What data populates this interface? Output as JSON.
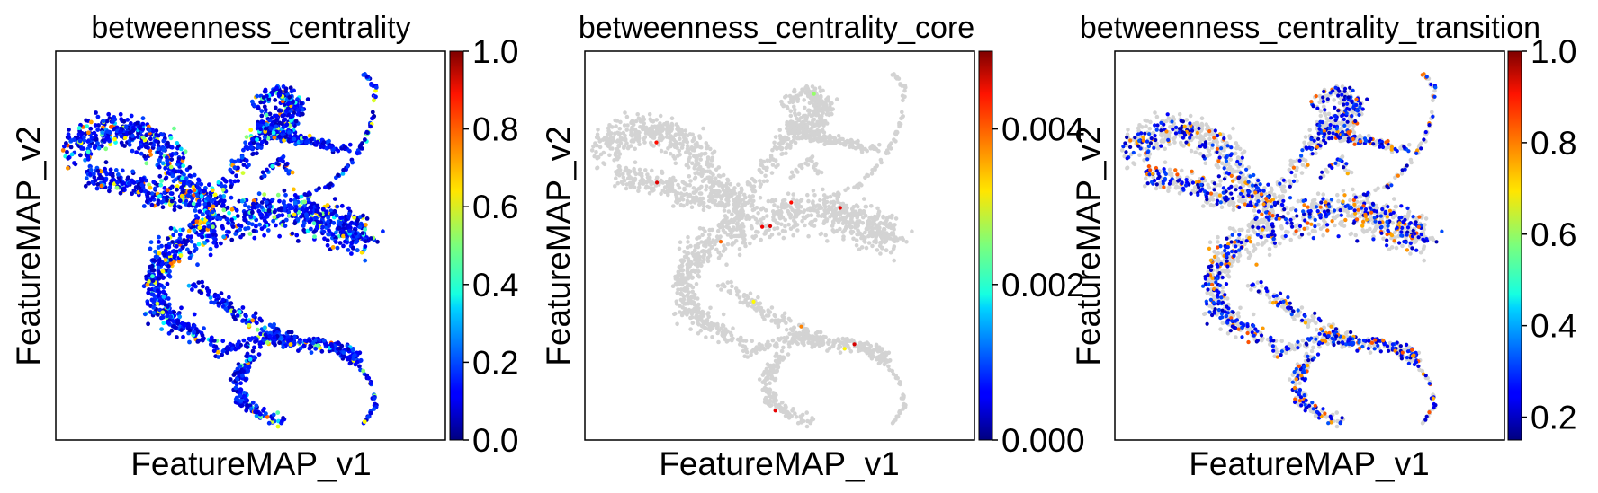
{
  "chart_data": [
    {
      "type": "scatter",
      "title": "betweenness_centrality",
      "xlabel": "FeatureMAP_v1",
      "ylabel": "FeatureMAP_v2",
      "colormap": "jet",
      "background_points": "none",
      "colorbar": {
        "range": [
          0.0,
          1.0
        ],
        "ticks": [
          "0.0",
          "0.2",
          "0.4",
          "0.6",
          "0.8",
          "1.0"
        ]
      },
      "grid": false
    },
    {
      "type": "scatter",
      "title": "betweenness_centrality_core",
      "xlabel": "FeatureMAP_v1",
      "ylabel": "FeatureMAP_v2",
      "colormap": "jet",
      "background_points": "#d3d3d3",
      "colorbar": {
        "range": [
          0.0,
          0.005
        ],
        "ticks": [
          "0.000",
          "0.002",
          "0.004"
        ]
      },
      "grid": false
    },
    {
      "type": "scatter",
      "title": "betweenness_centrality_transition",
      "xlabel": "FeatureMAP_v1",
      "ylabel": "FeatureMAP_v2",
      "colormap": "jet",
      "background_points": "#d3d3d3",
      "colorbar": {
        "range": [
          0.15,
          1.0
        ],
        "ticks": [
          "0.2",
          "0.4",
          "0.6",
          "0.8",
          "1.0"
        ]
      },
      "grid": false
    }
  ]
}
